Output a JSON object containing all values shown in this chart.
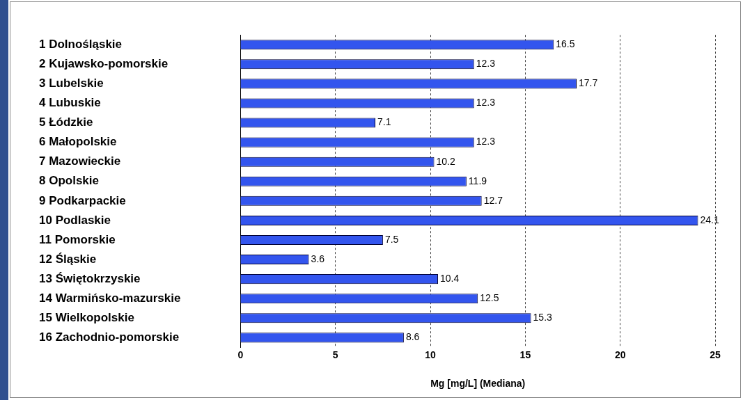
{
  "chart_data": {
    "type": "bar",
    "orientation": "horizontal",
    "xlabel": "Mg [mg/L] (Mediana)",
    "categories": [
      "1 Dolnośląskie",
      "2 Kujawsko-pomorskie",
      "3 Lubelskie",
      "4 Lubuskie",
      "5 Łódzkie",
      "6 Małopolskie",
      "7 Mazowieckie",
      "8 Opolskie",
      "9 Podkarpackie",
      "10 Podlaskie",
      "11 Pomorskie",
      "12 Śląskie",
      "13 Świętokrzyskie",
      "14 Warmińsko-mazurskie",
      "15 Wielkopolskie",
      "16 Zachodnio-pomorskie"
    ],
    "values": [
      16.5,
      12.3,
      17.7,
      12.3,
      7.1,
      12.3,
      10.2,
      11.9,
      12.7,
      24.1,
      7.5,
      3.6,
      10.4,
      12.5,
      15.3,
      8.6
    ],
    "color": "#3355ee",
    "xlim": [
      0,
      25
    ],
    "xticks": [
      0,
      5,
      10,
      15,
      20,
      25
    ],
    "grid": "x",
    "line_style": "dashed",
    "data_labels": true,
    "legend": false
  }
}
